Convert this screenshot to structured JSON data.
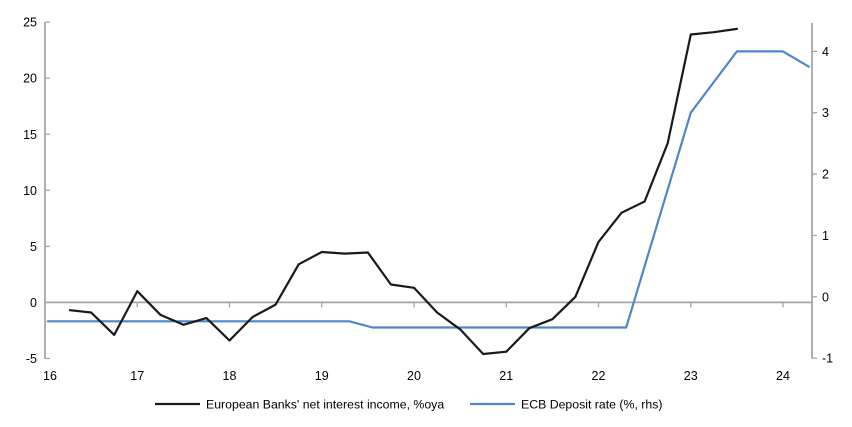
{
  "chart_data": {
    "type": "line",
    "title": "",
    "x_axis": {
      "min": 16,
      "max": 24.32,
      "tick_labels": [
        "16",
        "17",
        "18",
        "19",
        "20",
        "21",
        "22",
        "23",
        "24"
      ],
      "tick_values": [
        16,
        17,
        18,
        19,
        20,
        21,
        22,
        23,
        24
      ]
    },
    "left_axis": {
      "min": -5,
      "max": 25,
      "ticks": [
        25,
        20,
        15,
        10,
        5,
        0,
        -5
      ]
    },
    "right_axis": {
      "min": -1,
      "max": 4.47,
      "ticks": [
        4,
        3,
        2,
        1,
        0,
        -1
      ]
    },
    "zero_line": 0,
    "colors": {
      "axis": "#a6a6a6",
      "nii_line": "#1a1a1a",
      "ecb_line": "#4f86c6"
    },
    "series": [
      {
        "name": "European Banks' net interest income, %oya",
        "axis": "left",
        "color": "#1a1a1a",
        "points": [
          [
            16.27,
            -0.7
          ],
          [
            16.5,
            -0.9
          ],
          [
            16.75,
            -2.9
          ],
          [
            17.0,
            1.0
          ],
          [
            17.25,
            -1.1
          ],
          [
            17.5,
            -2.0
          ],
          [
            17.75,
            -1.4
          ],
          [
            18.0,
            -3.4
          ],
          [
            18.25,
            -1.3
          ],
          [
            18.5,
            -0.2
          ],
          [
            18.75,
            3.4
          ],
          [
            19.0,
            4.5
          ],
          [
            19.25,
            4.35
          ],
          [
            19.5,
            4.45
          ],
          [
            19.75,
            1.6
          ],
          [
            20.0,
            1.3
          ],
          [
            20.25,
            -0.9
          ],
          [
            20.5,
            -2.4
          ],
          [
            20.75,
            -4.6
          ],
          [
            21.0,
            -4.4
          ],
          [
            21.25,
            -2.3
          ],
          [
            21.5,
            -1.5
          ],
          [
            21.75,
            0.5
          ],
          [
            22.0,
            5.4
          ],
          [
            22.25,
            8.0
          ],
          [
            22.5,
            9.0
          ],
          [
            22.75,
            14.2
          ],
          [
            23.0,
            23.9
          ],
          [
            23.25,
            24.1
          ],
          [
            23.5,
            24.4
          ]
        ]
      },
      {
        "name": "ECB Deposit rate (%, rhs)",
        "axis": "right",
        "color": "#4f86c6",
        "points": [
          [
            16.03,
            -0.4
          ],
          [
            19.3,
            -0.4
          ],
          [
            19.55,
            -0.5
          ],
          [
            22.3,
            -0.5
          ],
          [
            23.0,
            3.0
          ],
          [
            23.5,
            4.0
          ],
          [
            24.0,
            4.0
          ],
          [
            24.28,
            3.75
          ]
        ]
      }
    ],
    "legend": {
      "position": "bottom-center",
      "entries": [
        "European Banks' net interest income, %oya",
        "ECB Deposit rate (%, rhs)"
      ]
    }
  }
}
